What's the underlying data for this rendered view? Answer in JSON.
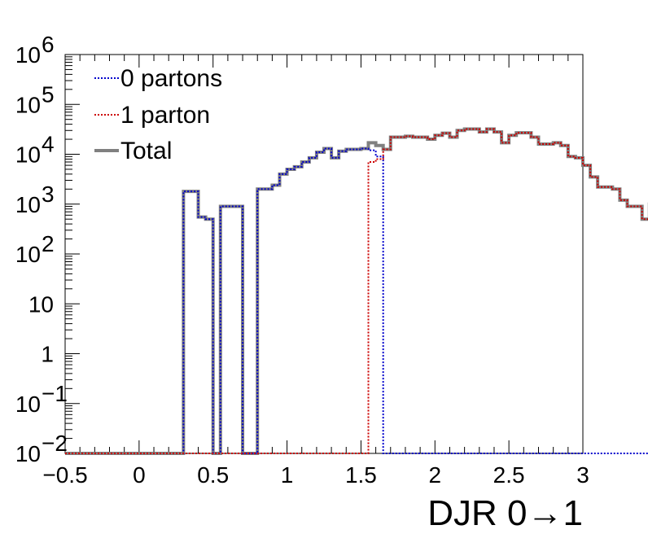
{
  "chart_data": {
    "type": "line",
    "style": "step-histogram",
    "xlabel": "DJR 0→1",
    "ylabel": "",
    "xlim": [
      -0.5,
      3.0
    ],
    "ylim": [
      0.01,
      1000000
    ],
    "yscale": "log",
    "grid": false,
    "legend_position": "top-left",
    "x_ticks": [
      {
        "value": -0.5,
        "label": "−0.5"
      },
      {
        "value": 0,
        "label": "0"
      },
      {
        "value": 0.5,
        "label": "0.5"
      },
      {
        "value": 1,
        "label": "1"
      },
      {
        "value": 1.5,
        "label": "1.5"
      },
      {
        "value": 2,
        "label": "2"
      },
      {
        "value": 2.5,
        "label": "2.5"
      },
      {
        "value": 3,
        "label": "3"
      }
    ],
    "y_ticks": [
      {
        "value": 0.01,
        "base": "10",
        "exp": "−2"
      },
      {
        "value": 0.1,
        "base": "10",
        "exp": "−1"
      },
      {
        "value": 1,
        "base": "1",
        "exp": ""
      },
      {
        "value": 10,
        "base": "10",
        "exp": ""
      },
      {
        "value": 100,
        "base": "10",
        "exp": "2"
      },
      {
        "value": 1000,
        "base": "10",
        "exp": "3"
      },
      {
        "value": 10000,
        "base": "10",
        "exp": "4"
      },
      {
        "value": 100000,
        "base": "10",
        "exp": "5"
      },
      {
        "value": 1000000,
        "base": "10",
        "exp": "6"
      }
    ],
    "bin_width": 0.05,
    "x_start": -0.5,
    "series": [
      {
        "name": "Total",
        "color": "#808080",
        "style": "solid",
        "values": [
          0.01,
          0.01,
          0.01,
          0.01,
          0.01,
          0.01,
          0.01,
          0.01,
          0.01,
          0.01,
          0.01,
          0.01,
          0.01,
          0.01,
          0.01,
          0.01,
          1800,
          1800,
          550,
          500,
          0.01,
          900,
          900,
          900,
          0.01,
          0.01,
          2000,
          2000,
          2400,
          4000,
          5000,
          5600,
          7000,
          8500,
          11000,
          13000,
          8500,
          11500,
          12500,
          12500,
          13000,
          17000,
          15000,
          12500,
          22000,
          22000,
          23000,
          22000,
          22000,
          20000,
          24000,
          26500,
          22000,
          30000,
          32000,
          32000,
          28000,
          32000,
          28000,
          17000,
          24000,
          27000,
          27000,
          22000,
          16000,
          16000,
          17000,
          15000,
          9000,
          8500,
          6000,
          3500,
          2200,
          2200,
          2000,
          1200,
          900,
          900,
          500,
          1000
        ]
      },
      {
        "name": "0 partons",
        "color": "#0000cc",
        "style": "dotted",
        "values": [
          0.01,
          0.01,
          0.01,
          0.01,
          0.01,
          0.01,
          0.01,
          0.01,
          0.01,
          0.01,
          0.01,
          0.01,
          0.01,
          0.01,
          0.01,
          0.01,
          1800,
          1800,
          550,
          500,
          0.01,
          900,
          900,
          900,
          0.01,
          0.01,
          2000,
          2000,
          2400,
          4000,
          5000,
          5600,
          7000,
          8500,
          11000,
          13000,
          8500,
          11500,
          12500,
          12500,
          13000,
          12000,
          9000,
          0.01,
          0.01,
          0.01,
          0.01,
          0.01,
          0.01,
          0.01,
          0.01,
          0.01,
          0.01,
          0.01,
          0.01,
          0.01,
          0.01,
          0.01,
          0.01,
          0.01,
          0.01,
          0.01,
          0.01,
          0.01,
          0.01,
          0.01,
          0.01,
          0.01,
          0.01,
          0.01,
          0.01,
          0.01,
          0.01,
          0.01,
          0.01,
          0.01,
          0.01,
          0.01,
          0.01,
          0.01
        ]
      },
      {
        "name": "1 parton",
        "color": "#cc0000",
        "style": "dotted",
        "values": [
          0.01,
          0.01,
          0.01,
          0.01,
          0.01,
          0.01,
          0.01,
          0.01,
          0.01,
          0.01,
          0.01,
          0.01,
          0.01,
          0.01,
          0.01,
          0.01,
          0.01,
          0.01,
          0.01,
          0.01,
          0.01,
          0.01,
          0.01,
          0.01,
          0.01,
          0.01,
          0.01,
          0.01,
          0.01,
          0.01,
          0.01,
          0.01,
          0.01,
          0.01,
          0.01,
          0.01,
          0.01,
          0.01,
          0.01,
          0.01,
          0.01,
          7000,
          8000,
          12500,
          22000,
          22000,
          23000,
          22000,
          22000,
          20000,
          24000,
          26500,
          22000,
          30000,
          32000,
          32000,
          28000,
          32000,
          28000,
          17000,
          24000,
          27000,
          27000,
          22000,
          16000,
          16000,
          17000,
          15000,
          9000,
          8500,
          6000,
          3500,
          2200,
          2200,
          2000,
          1200,
          900,
          900,
          500,
          1000
        ]
      }
    ]
  }
}
